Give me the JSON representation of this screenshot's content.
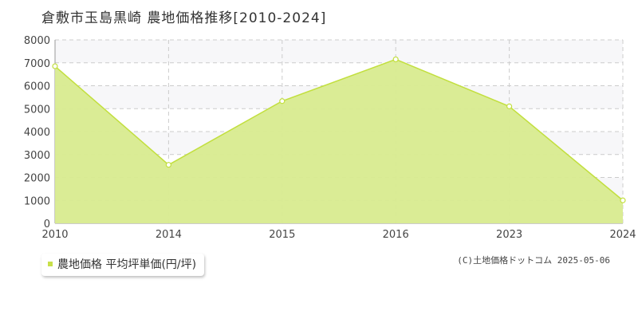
{
  "title": "倉敷市玉島黒崎 農地価格推移[2010-2024]",
  "legend": {
    "label": "農地価格 平均坪単価(円/坪)",
    "color": "#c8e04a"
  },
  "copyright": "(C)土地価格ドットコム 2025-05-06",
  "colors": {
    "fill": "#d8eb8f",
    "line": "#c2df3e",
    "band": "#f7f7f9",
    "grid": "#cccccc"
  },
  "chart_data": {
    "type": "area",
    "categories": [
      "2010",
      "2014",
      "2015",
      "2016",
      "2023",
      "2024"
    ],
    "series": [
      {
        "name": "農地価格 平均坪単価(円/坪)",
        "values": [
          6850,
          2550,
          5330,
          7150,
          5100,
          1000
        ]
      }
    ],
    "y_ticks": [
      "0",
      "1000",
      "2000",
      "3000",
      "4000",
      "5000",
      "6000",
      "7000",
      "8000"
    ],
    "ylim": [
      0,
      8000
    ],
    "xlabel": "",
    "ylabel": "",
    "grid": true
  }
}
